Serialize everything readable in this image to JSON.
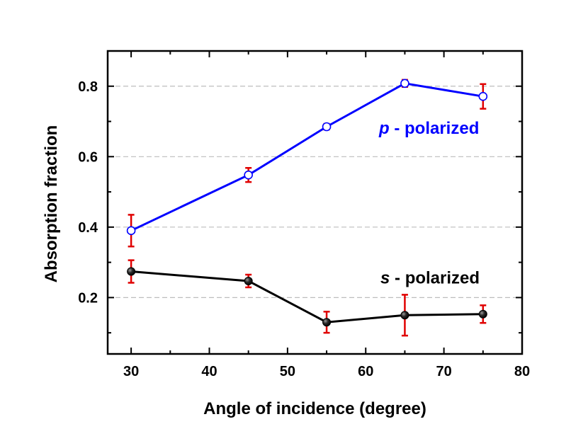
{
  "chart_data": {
    "type": "line",
    "xlabel": "Angle of incidence (degree)",
    "ylabel": "Absorption fraction",
    "xlim": [
      27,
      80
    ],
    "ylim": [
      0.04,
      0.9
    ],
    "xticks": [
      30,
      40,
      50,
      60,
      70,
      80
    ],
    "yticks": [
      0.2,
      0.4,
      0.6,
      0.8
    ],
    "xtick_labels": [
      "30",
      "40",
      "50",
      "60",
      "70",
      "80"
    ],
    "ytick_labels": [
      "0.2",
      "0.4",
      "0.6",
      "0.8"
    ],
    "grid": "horizontal dashed at y ticks",
    "series": [
      {
        "name": "p - polarized",
        "label_symbol": "p",
        "label_rest": " - polarized",
        "color": "#0000ff",
        "marker": "open-circle",
        "x": [
          30,
          45,
          55,
          65,
          75
        ],
        "y": [
          0.39,
          0.548,
          0.685,
          0.808,
          0.771
        ],
        "err": [
          0.045,
          0.02,
          0.008,
          0.01,
          0.035
        ]
      },
      {
        "name": "s - polarized",
        "label_symbol": "s",
        "label_rest": " - polarized",
        "color": "#000000",
        "marker": "filled-sphere",
        "x": [
          30,
          45,
          55,
          65,
          75
        ],
        "y": [
          0.274,
          0.247,
          0.13,
          0.15,
          0.153
        ],
        "err": [
          0.032,
          0.018,
          0.03,
          0.058,
          0.025
        ]
      }
    ],
    "errorbar_color": "#e00000"
  }
}
